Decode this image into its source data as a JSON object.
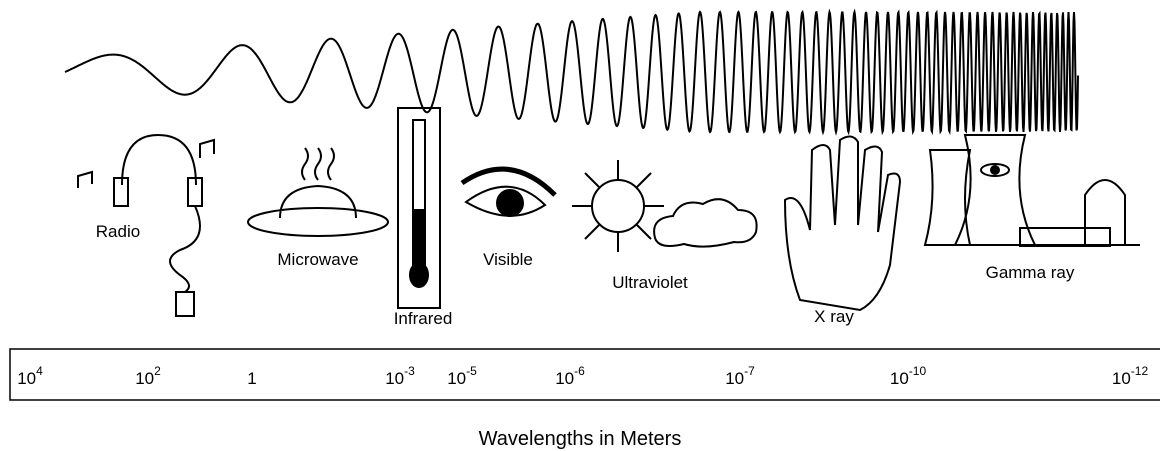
{
  "bands": [
    "Radio",
    "Microwave",
    "Infrared",
    "Visible",
    "Ultraviolet",
    "X ray",
    "Gamma ray"
  ],
  "scale": [
    {
      "base": "10",
      "exponent": "4"
    },
    {
      "base": "10",
      "exponent": "2"
    },
    {
      "base": "1"
    },
    {
      "base": "10",
      "exponent": "-3"
    },
    {
      "base": "10",
      "exponent": "-5"
    },
    {
      "base": "10",
      "exponent": "-6"
    },
    {
      "base": "10",
      "exponent": "-7"
    },
    {
      "base": "10",
      "exponent": "-10"
    },
    {
      "base": "10",
      "exponent": "-12"
    }
  ],
  "axis_title": "Wavelengths in Meters"
}
